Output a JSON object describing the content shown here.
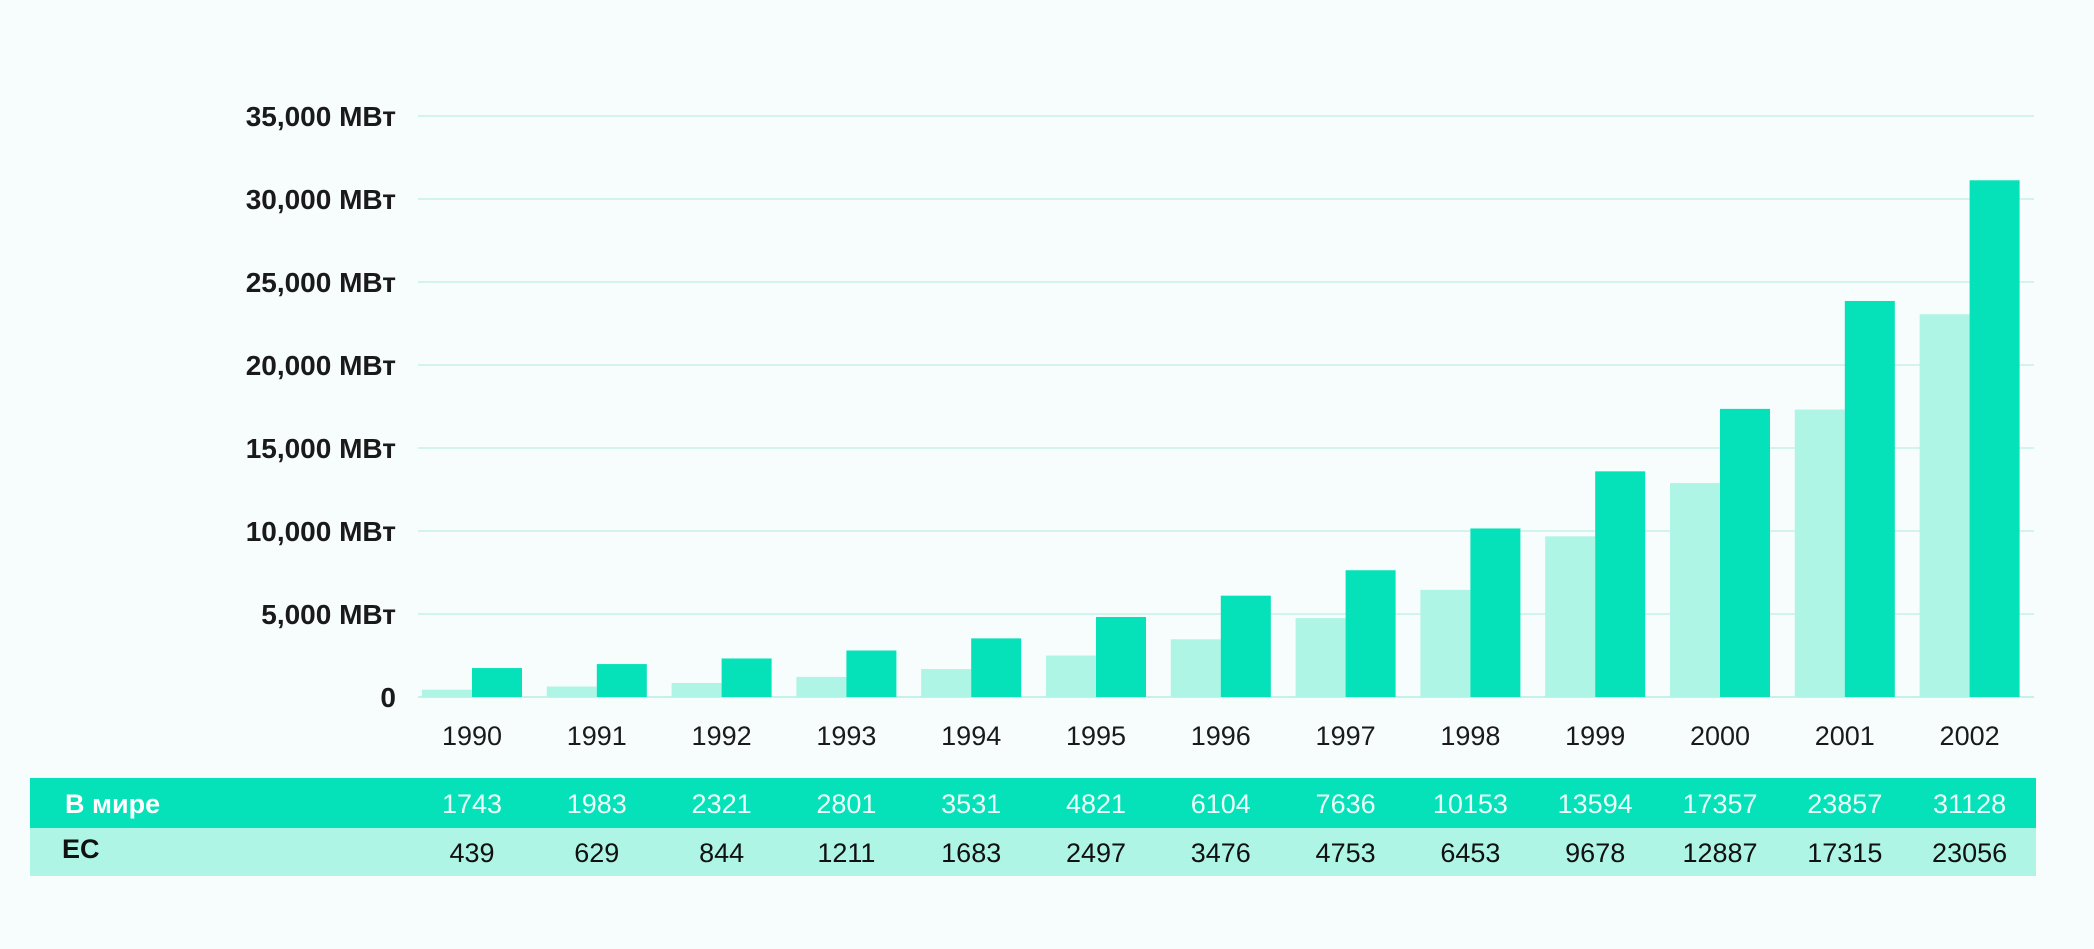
{
  "colors": {
    "background": "#f7fcfc",
    "world": "#05e1b8",
    "eu": "#aef5e5",
    "grid": "#c6f1e8",
    "text": "#1a1a1a",
    "table_world_row": "#05e1b8",
    "table_eu_row": "#aef5e5"
  },
  "chart_data": {
    "type": "bar",
    "title": "",
    "xlabel": "",
    "ylabel": "",
    "ylim": [
      0,
      35000
    ],
    "yticks": [
      0,
      5000,
      10000,
      15000,
      20000,
      25000,
      30000,
      35000
    ],
    "ytick_labels": [
      "0",
      "5,000 МВт",
      "10,000 МВт",
      "15,000 МВт",
      "20,000 МВт",
      "25,000 МВт",
      "30,000 МВт",
      "35,000 МВт"
    ],
    "grid": true,
    "legend": "table below chart",
    "categories": [
      "1990",
      "1991",
      "1992",
      "1993",
      "1994",
      "1995",
      "1996",
      "1997",
      "1998",
      "1999",
      "2000",
      "2001",
      "2002"
    ],
    "series": [
      {
        "name": "ЕС",
        "color": "#aef5e5",
        "values": [
          439,
          629,
          844,
          1211,
          1683,
          2497,
          3476,
          4753,
          6453,
          9678,
          12887,
          17315,
          23056
        ]
      },
      {
        "name": "В мире",
        "color": "#05e1b8",
        "values": [
          1743,
          1983,
          2321,
          2801,
          3531,
          4821,
          6104,
          7636,
          10153,
          13594,
          17357,
          23857,
          31128
        ]
      }
    ]
  },
  "table": {
    "rows": [
      {
        "label": "В мире",
        "values": [
          "1743",
          "1983",
          "2321",
          "2801",
          "3531",
          "4821",
          "6104",
          "7636",
          "10153",
          "13594",
          "17357",
          "23857",
          "31128"
        ]
      },
      {
        "label": "ЕС",
        "values": [
          "439",
          "629",
          "844",
          "1211",
          "1683",
          "2497",
          "3476",
          "4753",
          "6453",
          "9678",
          "12887",
          "17315",
          "23056"
        ]
      }
    ]
  }
}
